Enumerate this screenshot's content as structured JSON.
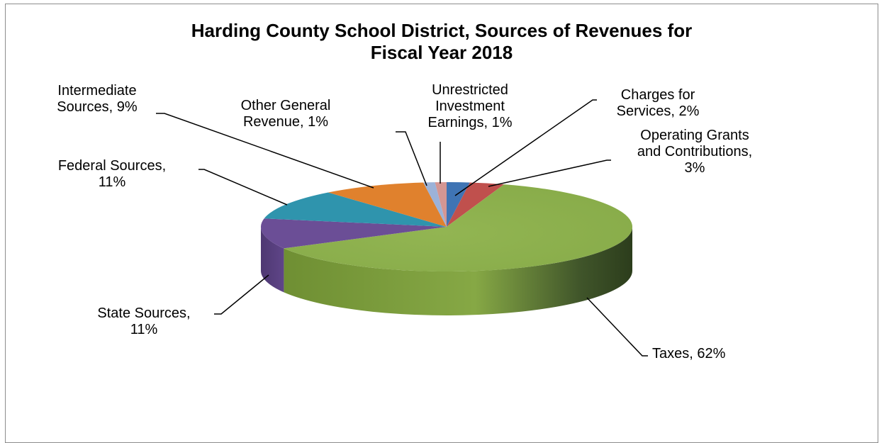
{
  "chart_data": {
    "type": "pie",
    "title_lines": [
      "Harding County School District, Sources of Revenues for",
      "Fiscal Year 2018"
    ],
    "slices": [
      {
        "name": "Charges for Services",
        "label_lines": [
          "Charges for",
          "Services, 2%"
        ],
        "value": 2,
        "color": "#3f74b4"
      },
      {
        "name": "Operating Grants and Contributions",
        "label_lines": [
          "Operating Grants",
          "and Contributions,",
          "3%"
        ],
        "value": 3,
        "color": "#c0504d"
      },
      {
        "name": "Taxes",
        "label_lines": [
          "Taxes, 62%"
        ],
        "value": 62,
        "color": "#8db14c"
      },
      {
        "name": "State Sources",
        "label_lines": [
          "State Sources,",
          "11%"
        ],
        "value": 11,
        "color": "#6b4e96"
      },
      {
        "name": "Federal Sources",
        "label_lines": [
          "Federal Sources,",
          "11%"
        ],
        "value": 11,
        "color": "#2f94ad"
      },
      {
        "name": "Intermediate Sources",
        "label_lines": [
          "Intermediate",
          "Sources, 9%"
        ],
        "value": 9,
        "color": "#e0812d"
      },
      {
        "name": "Other General Revenue",
        "label_lines": [
          "Other General",
          "Revenue, 1%"
        ],
        "value": 1,
        "color": "#9cb2d8"
      },
      {
        "name": "Unrestricted Investment Earnings",
        "label_lines": [
          "Unrestricted",
          "Investment",
          "Earnings, 1%"
        ],
        "value": 1,
        "color": "#d49693"
      }
    ],
    "style": "3d-pie",
    "legend": "none"
  }
}
